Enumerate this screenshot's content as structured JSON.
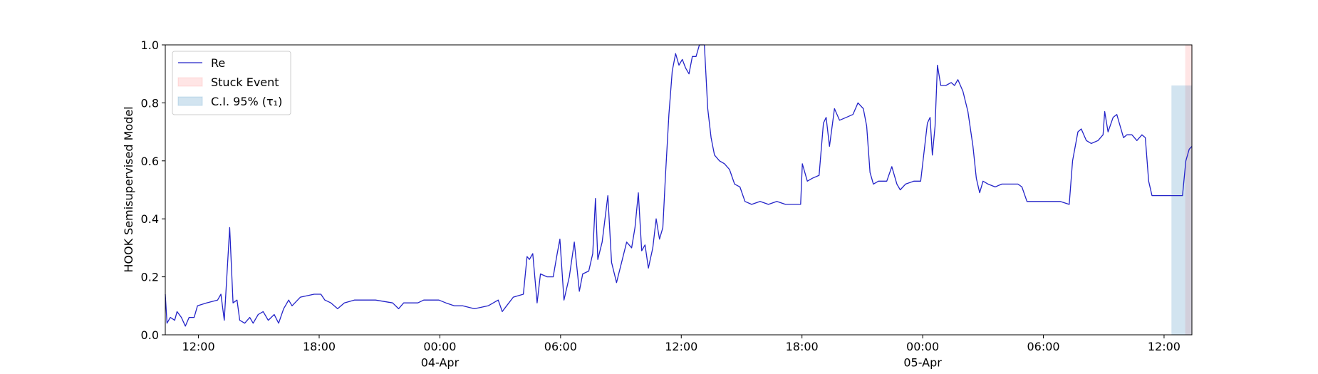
{
  "chart_data": {
    "type": "line",
    "ylabel": "HOOK Semisupervised Model",
    "x": [
      "1900-04-03T10:21",
      "1900-04-03T10:26",
      "1900-04-03T10:36",
      "1900-04-03T10:49",
      "1900-04-03T10:56",
      "1900-04-03T11:09",
      "1900-04-03T11:21",
      "1900-04-03T11:32",
      "1900-04-03T11:47",
      "1900-04-03T11:57",
      "1900-04-03T12:24",
      "1900-04-03T12:57",
      "1900-04-03T13:07",
      "1900-04-03T13:17",
      "1900-04-03T13:33",
      "1900-04-03T13:43",
      "1900-04-03T13:55",
      "1900-04-03T14:03",
      "1900-04-03T14:18",
      "1900-04-03T14:33",
      "1900-04-03T14:43",
      "1900-04-03T14:58",
      "1900-04-03T15:13",
      "1900-04-03T15:28",
      "1900-04-03T15:46",
      "1900-04-03T15:59",
      "1900-04-03T16:14",
      "1900-04-03T16:29",
      "1900-04-03T16:39",
      "1900-04-03T17:04",
      "1900-04-03T17:45",
      "1900-04-03T18:05",
      "1900-04-03T18:17",
      "1900-04-03T18:35",
      "1900-04-03T18:55",
      "1900-04-03T19:15",
      "1900-04-03T19:45",
      "1900-04-03T20:48",
      "1900-04-03T21:39",
      "1900-04-03T21:57",
      "1900-04-03T22:12",
      "1900-04-03T22:54",
      "1900-04-03T23:12",
      "1900-04-03T23:57",
      "1900-04-04T00:18",
      "1900-04-04T00:43",
      "1900-04-04T01:08",
      "1900-04-04T01:43",
      "1900-04-04T02:24",
      "1900-04-04T02:54",
      "1900-04-04T03:06",
      "1900-04-04T03:19",
      "1900-04-04T03:39",
      "1900-04-04T04:09",
      "1900-04-04T04:20",
      "1900-04-04T04:27",
      "1900-04-04T04:37",
      "1900-04-04T04:50",
      "1900-04-04T05:00",
      "1900-04-04T05:20",
      "1900-04-04T05:38",
      "1900-04-04T05:50",
      "1900-04-04T05:58",
      "1900-04-04T06:10",
      "1900-04-04T06:26",
      "1900-04-04T06:41",
      "1900-04-04T06:56",
      "1900-04-04T07:06",
      "1900-04-04T07:24",
      "1900-04-04T07:36",
      "1900-04-04T07:44",
      "1900-04-04T07:51",
      "1900-04-04T08:04",
      "1900-04-04T08:21",
      "1900-04-04T08:32",
      "1900-04-04T08:47",
      "1900-04-04T09:02",
      "1900-04-04T09:17",
      "1900-04-04T09:32",
      "1900-04-04T09:42",
      "1900-04-04T09:52",
      "1900-04-04T10:02",
      "1900-04-04T10:12",
      "1900-04-04T10:22",
      "1900-04-04T10:35",
      "1900-04-04T10:45",
      "1900-04-04T10:55",
      "1900-04-04T11:05",
      "1900-04-04T11:13",
      "1900-04-04T11:23",
      "1900-04-04T11:33",
      "1900-04-04T11:43",
      "1900-04-04T11:53",
      "1900-04-04T12:03",
      "1900-04-04T12:13",
      "1900-04-04T12:23",
      "1900-04-04T12:33",
      "1900-04-04T12:44",
      "1900-04-04T12:54",
      "1900-04-04T13:09",
      "1900-04-04T13:19",
      "1900-04-04T13:29",
      "1900-04-04T13:39",
      "1900-04-04T13:54",
      "1900-04-04T14:09",
      "1900-04-04T14:24",
      "1900-04-04T14:39",
      "1900-04-04T14:55",
      "1900-04-04T15:10",
      "1900-04-04T15:30",
      "1900-04-04T15:55",
      "1900-04-04T16:20",
      "1900-04-04T16:45",
      "1900-04-04T17:11",
      "1900-04-04T17:36",
      "1900-04-04T17:56",
      "1900-04-04T18:01",
      "1900-04-04T18:16",
      "1900-04-04T18:31",
      "1900-04-04T18:51",
      "1900-04-04T19:04",
      "1900-04-04T19:12",
      "1900-04-04T19:22",
      "1900-04-04T19:37",
      "1900-04-04T19:52",
      "1900-04-04T20:12",
      "1900-04-04T20:32",
      "1900-04-04T20:47",
      "1900-04-04T21:03",
      "1900-04-04T21:13",
      "1900-04-04T21:23",
      "1900-04-04T21:33",
      "1900-04-04T21:48",
      "1900-04-04T22:13",
      "1900-04-04T22:28",
      "1900-04-04T22:43",
      "1900-04-04T22:53",
      "1900-04-04T23:09",
      "1900-04-04T23:34",
      "1900-04-04T23:54",
      "1900-04-05T00:14",
      "1900-04-05T00:22",
      "1900-04-05T00:29",
      "1900-04-05T00:37",
      "1900-04-05T00:44",
      "1900-04-05T00:54",
      "1900-04-05T01:09",
      "1900-04-05T01:25",
      "1900-04-05T01:35",
      "1900-04-05T01:45",
      "1900-04-05T02:00",
      "1900-04-05T02:15",
      "1900-04-05T02:30",
      "1900-04-05T02:40",
      "1900-04-05T02:50",
      "1900-04-05T03:00",
      "1900-04-05T03:15",
      "1900-04-05T03:36",
      "1900-04-05T03:56",
      "1900-04-05T04:16",
      "1900-04-05T04:44",
      "1900-04-05T04:56",
      "1900-04-05T05:11",
      "1900-04-05T05:47",
      "1900-04-05T06:24",
      "1900-04-05T06:50",
      "1900-04-05T07:17",
      "1900-04-05T07:27",
      "1900-04-05T07:43",
      "1900-04-05T07:53",
      "1900-04-05T08:08",
      "1900-04-05T08:23",
      "1900-04-05T08:43",
      "1900-04-05T08:58",
      "1900-04-05T09:03",
      "1900-04-05T09:13",
      "1900-04-05T09:28",
      "1900-04-05T09:39",
      "1900-04-05T09:49",
      "1900-04-05T09:59",
      "1900-04-05T10:09",
      "1900-04-05T10:24",
      "1900-04-05T10:39",
      "1900-04-05T10:54",
      "1900-04-05T11:04",
      "1900-04-05T11:14",
      "1900-04-05T11:24",
      "1900-04-05T11:39",
      "1900-04-05T12:00",
      "1900-04-05T12:20",
      "1900-04-05T12:45",
      "1900-04-05T12:55",
      "1900-04-05T13:05",
      "1900-04-05T13:15",
      "1900-04-05T13:23"
    ],
    "series": [
      {
        "name": "Re",
        "color": "#2323c8",
        "values": [
          0.14,
          0.04,
          0.06,
          0.05,
          0.08,
          0.06,
          0.03,
          0.06,
          0.06,
          0.1,
          0.11,
          0.12,
          0.14,
          0.05,
          0.37,
          0.11,
          0.12,
          0.05,
          0.04,
          0.06,
          0.04,
          0.07,
          0.08,
          0.05,
          0.07,
          0.04,
          0.09,
          0.12,
          0.1,
          0.13,
          0.14,
          0.14,
          0.12,
          0.11,
          0.09,
          0.11,
          0.12,
          0.12,
          0.11,
          0.09,
          0.11,
          0.11,
          0.12,
          0.12,
          0.11,
          0.1,
          0.1,
          0.09,
          0.1,
          0.12,
          0.08,
          0.1,
          0.13,
          0.14,
          0.27,
          0.26,
          0.28,
          0.11,
          0.21,
          0.2,
          0.2,
          0.28,
          0.33,
          0.12,
          0.2,
          0.32,
          0.15,
          0.21,
          0.22,
          0.28,
          0.47,
          0.26,
          0.32,
          0.48,
          0.25,
          0.18,
          0.25,
          0.32,
          0.3,
          0.37,
          0.49,
          0.29,
          0.31,
          0.23,
          0.3,
          0.4,
          0.33,
          0.37,
          0.55,
          0.76,
          0.91,
          0.97,
          0.93,
          0.95,
          0.92,
          0.9,
          0.96,
          0.96,
          1.0,
          1.0,
          0.78,
          0.68,
          0.62,
          0.6,
          0.59,
          0.57,
          0.52,
          0.51,
          0.46,
          0.45,
          0.46,
          0.45,
          0.46,
          0.45,
          0.45,
          0.45,
          0.59,
          0.53,
          0.54,
          0.55,
          0.73,
          0.75,
          0.65,
          0.78,
          0.74,
          0.75,
          0.76,
          0.8,
          0.78,
          0.72,
          0.56,
          0.52,
          0.53,
          0.53,
          0.58,
          0.52,
          0.5,
          0.52,
          0.53,
          0.53,
          0.73,
          0.75,
          0.62,
          0.72,
          0.93,
          0.86,
          0.86,
          0.87,
          0.86,
          0.88,
          0.84,
          0.77,
          0.65,
          0.54,
          0.49,
          0.53,
          0.52,
          0.51,
          0.52,
          0.52,
          0.52,
          0.51,
          0.46,
          0.46,
          0.46,
          0.46,
          0.45,
          0.6,
          0.7,
          0.71,
          0.67,
          0.66,
          0.67,
          0.69,
          0.77,
          0.7,
          0.75,
          0.76,
          0.72,
          0.68,
          0.69,
          0.69,
          0.67,
          0.69,
          0.68,
          0.53,
          0.48,
          0.48,
          0.48,
          0.48,
          0.48,
          0.48,
          0.6,
          0.64,
          0.65
        ]
      }
    ],
    "bands": [
      {
        "name": "Stuck Event",
        "color": "#ff0000",
        "alpha": 0.1,
        "x": [
          "1900-04-05T13:03",
          "1900-04-05T13:23"
        ],
        "y": [
          0,
          1
        ]
      },
      {
        "name": "C.I. 95% (τ₁)",
        "color": "#1f77b4",
        "alpha": 0.2,
        "x": [
          "1900-04-05T12:22",
          "1900-04-05T13:23"
        ],
        "y": [
          0,
          0.86
        ]
      }
    ],
    "xlim": [
      "1900-04-03T10:21",
      "1900-04-05T13:23"
    ],
    "xticks": [
      {
        "value": "1900-04-03T12:00",
        "label": "12:00"
      },
      {
        "value": "1900-04-03T18:00",
        "label": "18:00"
      },
      {
        "value": "1900-04-04T00:00",
        "label": "00:00\n04-Apr\n1900"
      },
      {
        "value": "1900-04-04T06:00",
        "label": "06:00"
      },
      {
        "value": "1900-04-04T12:00",
        "label": "12:00"
      },
      {
        "value": "1900-04-04T18:00",
        "label": "18:00"
      },
      {
        "value": "1900-04-05T00:00",
        "label": "00:00\n05-Apr"
      },
      {
        "value": "1900-04-05T06:00",
        "label": "06:00"
      },
      {
        "value": "1900-04-05T12:00",
        "label": "12:00"
      }
    ],
    "ylim": [
      0,
      1
    ],
    "yticks": [
      {
        "value": 0,
        "label": "0.0"
      },
      0.2,
      0.4,
      0.6,
      0.8,
      {
        "value": 1,
        "label": "1.0"
      }
    ],
    "grid": false,
    "legend": "upper left"
  }
}
